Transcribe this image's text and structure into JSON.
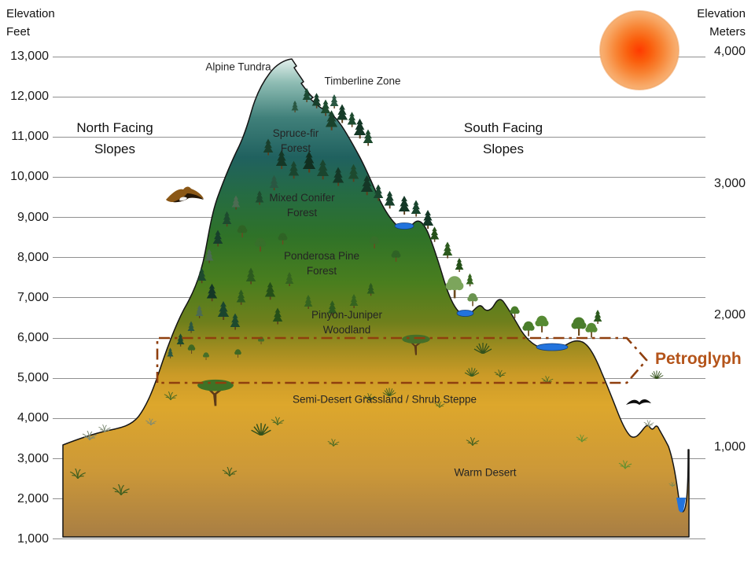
{
  "axes": {
    "left": {
      "title_lines": [
        "Elevation",
        "Feet"
      ],
      "ticks": [
        {
          "label": "13,000",
          "ft": 13000
        },
        {
          "label": "12,000",
          "ft": 12000
        },
        {
          "label": "11,000",
          "ft": 11000
        },
        {
          "label": "10,000",
          "ft": 10000
        },
        {
          "label": "9,000",
          "ft": 9000
        },
        {
          "label": "8,000",
          "ft": 8000
        },
        {
          "label": "7,000",
          "ft": 7000
        },
        {
          "label": "6,000",
          "ft": 6000
        },
        {
          "label": "5,000",
          "ft": 5000
        },
        {
          "label": "4,000",
          "ft": 4000
        },
        {
          "label": "3,000",
          "ft": 3000
        },
        {
          "label": "2,000",
          "ft": 2000
        },
        {
          "label": "1,000",
          "ft": 1000
        }
      ]
    },
    "right": {
      "title_lines": [
        "Elevation",
        "Meters"
      ],
      "ticks": [
        {
          "label": "4,000",
          "m": 4000
        },
        {
          "label": "3,000",
          "m": 3000
        },
        {
          "label": "2,000",
          "m": 2000
        },
        {
          "label": "1,000",
          "m": 1000
        }
      ]
    }
  },
  "slope_labels": {
    "north_lines": [
      "North Facing",
      "Slopes"
    ],
    "south_lines": [
      "South Facing",
      "Slopes"
    ]
  },
  "zones": {
    "alpine_tundra": "Alpine Tundra",
    "timberline": "Timberline Zone",
    "spruce_fir": "Spruce-fir Forest",
    "mixed_conifer": "Mixed Conifer Forest",
    "ponderosa": "Ponderosa Pine Forest",
    "pinyon_juniper": "Pinyon-Juniper Woodland",
    "semi_desert": "Semi-Desert Grassland / Shrub Steppe",
    "warm_desert": "Warm Desert"
  },
  "petroglyph_label": "Petroglyph",
  "icons": {
    "sun": "sun-icon",
    "eagle": "eagle-icon",
    "seagull": "bird-icon"
  },
  "colors": {
    "petroglyph_accent": "#b4541a",
    "petroglyph_outline": "#8f3f0e",
    "gridline": "#909090",
    "sun_core": "#ff3a00",
    "sun_edge": "#f7b276",
    "water": "#2273dd"
  }
}
